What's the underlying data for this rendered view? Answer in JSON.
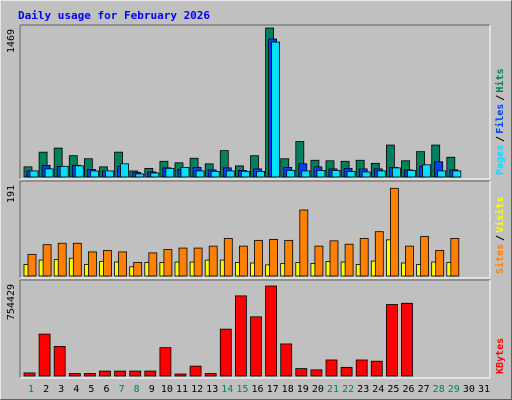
{
  "title": "Daily usage for February 2026",
  "colors": {
    "title": "#0000ff",
    "hits": "#00805c",
    "files": "#0040ff",
    "pages": "#00e0ff",
    "visits": "#ffff00",
    "sites": "#ff8000",
    "kbytes": "#ff0000",
    "weekend": "#00805c",
    "weekday": "#000000",
    "panel": "#c0c0c0",
    "outline": "#000000"
  },
  "chart_data": [
    {
      "type": "bar",
      "panel": "hits_files_pages",
      "ymax_label": "1469",
      "ylim": [
        0,
        1469
      ],
      "legend": [
        {
          "name": "Pages",
          "color_key": "pages"
        },
        {
          "name": "Files",
          "color_key": "files"
        },
        {
          "name": "Hits",
          "color_key": "hits"
        }
      ],
      "categories": [
        "1",
        "2",
        "3",
        "4",
        "5",
        "6",
        "7",
        "8",
        "9",
        "10",
        "11",
        "12",
        "13",
        "14",
        "15",
        "16",
        "17",
        "18",
        "19",
        "20",
        "21",
        "22",
        "23",
        "24",
        "25",
        "26",
        "27",
        "28",
        "29",
        "30",
        "31"
      ],
      "series": [
        {
          "name": "Hits",
          "color_key": "hits",
          "values": [
            100,
            245,
            285,
            210,
            180,
            100,
            245,
            60,
            85,
            155,
            140,
            185,
            130,
            260,
            110,
            210,
            1469,
            180,
            350,
            165,
            160,
            155,
            165,
            135,
            315,
            160,
            250,
            315,
            195,
            null,
            null
          ]
        },
        {
          "name": "Files",
          "color_key": "files",
          "values": [
            60,
            115,
            105,
            115,
            75,
            60,
            105,
            45,
            50,
            90,
            75,
            95,
            70,
            90,
            65,
            80,
            1360,
            95,
            130,
            100,
            80,
            85,
            80,
            80,
            95,
            70,
            105,
            150,
            70,
            null,
            null
          ]
        },
        {
          "name": "Pages",
          "color_key": "pages",
          "values": [
            60,
            80,
            105,
            110,
            60,
            60,
            130,
            30,
            40,
            85,
            95,
            60,
            55,
            60,
            55,
            55,
            1330,
            65,
            60,
            65,
            65,
            55,
            50,
            60,
            90,
            65,
            120,
            60,
            60,
            null,
            null
          ]
        }
      ]
    },
    {
      "type": "bar",
      "panel": "visits_sites",
      "ymax_label": "191",
      "ylim": [
        0,
        191
      ],
      "legend": [
        {
          "name": "Sites",
          "color_key": "sites"
        },
        {
          "name": "Visits",
          "color_key": "visits"
        }
      ],
      "categories": [
        "1",
        "2",
        "3",
        "4",
        "5",
        "6",
        "7",
        "8",
        "9",
        "10",
        "11",
        "12",
        "13",
        "14",
        "15",
        "16",
        "17",
        "18",
        "19",
        "20",
        "21",
        "22",
        "23",
        "24",
        "25",
        "26",
        "27",
        "28",
        "29",
        "30",
        "31"
      ],
      "series": [
        {
          "name": "Visits",
          "color_key": "visits",
          "values": [
            24,
            33,
            34,
            37,
            24,
            30,
            29,
            19,
            28,
            28,
            29,
            29,
            33,
            33,
            28,
            27,
            23,
            26,
            28,
            26,
            30,
            29,
            24,
            31,
            75,
            27,
            24,
            29,
            28,
            null,
            null
          ]
        },
        {
          "name": "Sites",
          "color_key": "sites",
          "values": [
            45,
            65,
            68,
            68,
            50,
            53,
            50,
            28,
            48,
            55,
            58,
            58,
            62,
            78,
            62,
            74,
            76,
            74,
            137,
            62,
            73,
            66,
            78,
            92,
            182,
            62,
            82,
            53,
            78,
            null,
            null
          ]
        }
      ]
    },
    {
      "type": "bar",
      "panel": "kbytes",
      "ymax_label": "754429",
      "ylim": [
        0,
        754429
      ],
      "legend": [
        {
          "name": "KBytes",
          "color_key": "kbytes"
        }
      ],
      "categories": [
        "1",
        "2",
        "3",
        "4",
        "5",
        "6",
        "7",
        "8",
        "9",
        "10",
        "11",
        "12",
        "13",
        "14",
        "15",
        "16",
        "17",
        "18",
        "19",
        "20",
        "21",
        "22",
        "23",
        "24",
        "25",
        "26",
        "27",
        "28",
        "29",
        "30",
        "31"
      ],
      "series": [
        {
          "name": "KBytes",
          "color_key": "kbytes",
          "values": [
            25000,
            340000,
            240000,
            20000,
            20000,
            40000,
            40000,
            40000,
            40000,
            230000,
            10000,
            80000,
            20000,
            380000,
            650000,
            480000,
            730000,
            260000,
            60000,
            50000,
            130000,
            70000,
            130000,
            120000,
            580000,
            590000,
            null,
            null,
            null,
            null,
            null
          ]
        }
      ]
    }
  ]
}
